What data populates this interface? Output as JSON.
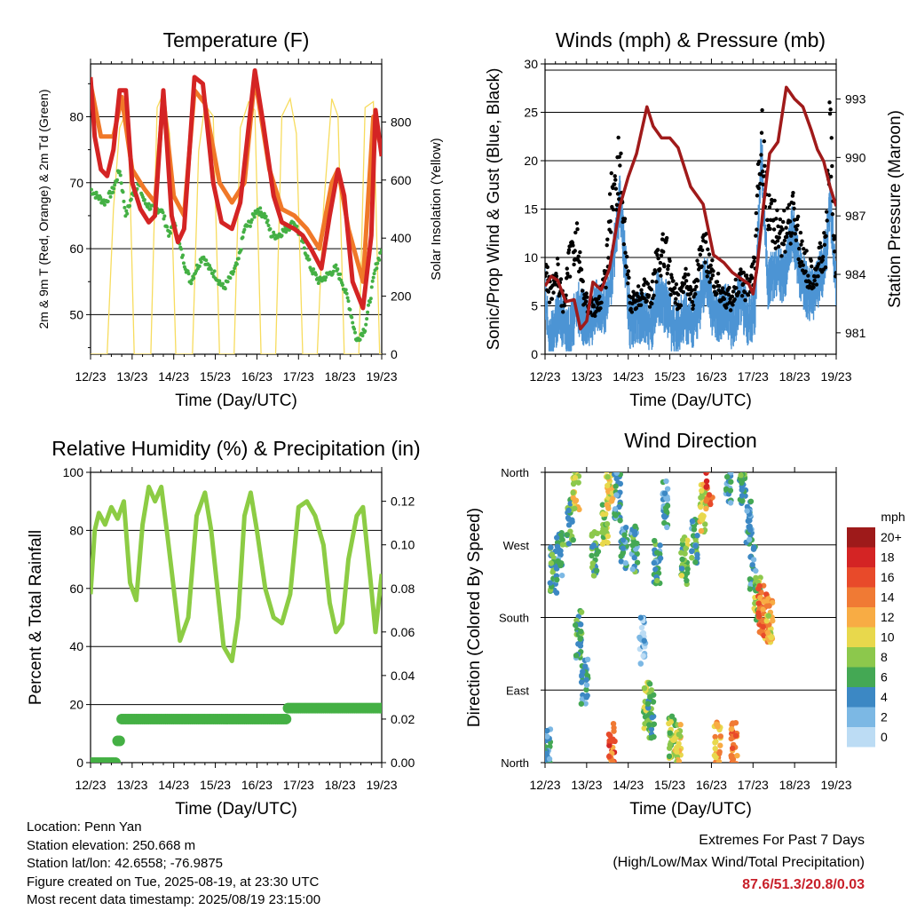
{
  "figure": {
    "footer": {
      "location": "Location: Penn Yan",
      "elevation": "Station elevation: 250.668 m",
      "latlon": "Station lat/lon: 42.6558; -76.9875",
      "created": "Figure created on Tue, 2025-08-19, at 23:30 UTC",
      "recent": "Most recent data timestamp: 2025/08/19 23:15:00"
    },
    "extremes": {
      "title": "Extremes For Past 7 Days",
      "subtitle": "(High/Low/Max Wind/Total Precipitation)",
      "values": "87.6/51.3/20.8/0.03"
    },
    "colors": {
      "temp_2m": "#d42424",
      "temp_9m": "#f07828",
      "dewpoint": "#44b044",
      "solar": "#f7dc5e",
      "wind": "#4c94d4",
      "gust": "#000000",
      "pressure": "#a01a1a",
      "rh": "#8ccc44",
      "precip": "#44b044"
    }
  },
  "chart_data": [
    {
      "type": "line",
      "title": "Temperature (F)",
      "xlabel": "Time (Day/UTC)",
      "ylabel": "2m & 9m T (Red, Orange) & 2m Td (Green)",
      "ylabel_right": "Solar Insolation (Yellow)",
      "xticks": [
        "12/23",
        "13/23",
        "14/23",
        "15/23",
        "16/23",
        "17/23",
        "18/23",
        "19/23"
      ],
      "yticks": [
        "50",
        "60",
        "70",
        "80"
      ],
      "yticks_right": [
        "0",
        "200",
        "400",
        "600",
        "800"
      ],
      "ylim": [
        44,
        88
      ],
      "ylim_right": [
        0,
        1000
      ],
      "xlim": [
        0,
        7
      ],
      "series": [
        {
          "name": "2m T",
          "x": [
            0,
            0.1,
            0.25,
            0.4,
            0.55,
            0.7,
            0.85,
            1.0,
            1.2,
            1.4,
            1.55,
            1.75,
            1.95,
            2.1,
            2.25,
            2.5,
            2.7,
            2.95,
            3.15,
            3.4,
            3.6,
            3.95,
            4.15,
            4.4,
            4.6,
            4.9,
            5.1,
            5.3,
            5.55,
            5.75,
            5.95,
            6.1,
            6.3,
            6.55,
            6.75,
            6.85,
            7.0
          ],
          "values": [
            86,
            77,
            72,
            71,
            75,
            84,
            84,
            70,
            66,
            64,
            65,
            84,
            65,
            61,
            63,
            86,
            85,
            70,
            64,
            63,
            67,
            87,
            79,
            68,
            64,
            63,
            62,
            60,
            57,
            65,
            72,
            68,
            55,
            51,
            62,
            81,
            74
          ]
        },
        {
          "name": "9m T",
          "x": [
            0,
            0.25,
            0.55,
            0.75,
            1.0,
            1.3,
            1.55,
            1.75,
            2.0,
            2.25,
            2.5,
            2.75,
            3.1,
            3.4,
            3.7,
            3.95,
            4.3,
            4.6,
            4.9,
            5.2,
            5.5,
            5.8,
            5.95,
            6.2,
            6.55,
            6.8,
            7.0
          ],
          "values": [
            85,
            77,
            77,
            83,
            72,
            69,
            67,
            83,
            68,
            65,
            84,
            82,
            70,
            67,
            70,
            86,
            72,
            66,
            65,
            63,
            60,
            70,
            72,
            63,
            55,
            80,
            75
          ]
        },
        {
          "name": "2m Td",
          "x": [
            0,
            0.15,
            0.35,
            0.55,
            0.7,
            0.85,
            1.0,
            1.15,
            1.3,
            1.5,
            1.7,
            1.9,
            2.0,
            2.2,
            2.4,
            2.55,
            2.7,
            2.85,
            3.0,
            3.2,
            3.4,
            3.55,
            3.7,
            3.85,
            4.0,
            4.2,
            4.35,
            4.5,
            4.7,
            4.9,
            5.1,
            5.3,
            5.5,
            5.7,
            5.9,
            6.05,
            6.2,
            6.4,
            6.6,
            6.85,
            7.0
          ],
          "values": [
            69,
            68,
            67,
            69,
            72,
            65,
            68,
            70,
            67,
            66,
            66,
            62,
            64,
            59,
            55,
            57,
            59,
            57,
            56,
            54,
            56,
            58,
            63,
            64,
            66,
            65,
            62,
            62,
            63,
            64,
            61,
            57,
            55,
            56,
            57,
            55,
            52,
            46,
            48,
            57,
            60
          ]
        },
        {
          "name": "Solar",
          "x": [
            0,
            0.4,
            0.55,
            0.7,
            0.9,
            1.05,
            1.2,
            1.45,
            1.6,
            1.75,
            1.9,
            2.05,
            2.2,
            2.45,
            2.6,
            2.75,
            2.95,
            3.1,
            3.25,
            3.45,
            3.6,
            3.8,
            3.95,
            4.1,
            4.25,
            4.45,
            4.6,
            4.8,
            4.95,
            5.1,
            5.25,
            5.45,
            5.6,
            5.8,
            5.95,
            6.1,
            6.25,
            6.45,
            6.6,
            6.8,
            6.95,
            7.0
          ],
          "values": [
            0,
            0,
            500,
            780,
            850,
            0,
            0,
            0,
            850,
            900,
            760,
            0,
            0,
            0,
            700,
            860,
            820,
            0,
            0,
            0,
            780,
            870,
            840,
            0,
            0,
            0,
            820,
            880,
            760,
            0,
            0,
            0,
            500,
            880,
            820,
            0,
            0,
            0,
            850,
            870,
            0,
            0
          ]
        }
      ]
    },
    {
      "type": "line",
      "title": "Winds (mph) & Pressure (mb)",
      "xlabel": "Time (Day/UTC)",
      "ylabel": "Sonic/Prop Wind & Gust (Blue, Black)",
      "ylabel_right": "Station Pressure (Maroon)",
      "xticks": [
        "12/23",
        "13/23",
        "14/23",
        "15/23",
        "16/23",
        "17/23",
        "18/23",
        "19/23"
      ],
      "yticks": [
        "0",
        "5",
        "10",
        "15",
        "20",
        "25",
        "30"
      ],
      "yticks_right": [
        "981",
        "984",
        "987",
        "990",
        "993"
      ],
      "ylim": [
        0,
        30
      ],
      "ylim_right": [
        979.9,
        994.8
      ],
      "xlim": [
        0,
        7
      ],
      "series": [
        {
          "name": "Wind",
          "x": [
            0,
            0.1,
            0.3,
            0.45,
            0.6,
            0.75,
            0.9,
            1.05,
            1.25,
            1.45,
            1.6,
            1.8,
            1.95,
            2.05,
            2.2,
            2.4,
            2.55,
            2.7,
            2.9,
            3.05,
            3.2,
            3.4,
            3.55,
            3.7,
            3.85,
            4.0,
            4.2,
            4.35,
            4.5,
            4.7,
            4.9,
            5.05,
            5.2,
            5.35,
            5.55,
            5.75,
            5.95,
            6.15,
            6.35,
            6.55,
            6.75,
            6.85,
            7.0
          ],
          "values": [
            6,
            1,
            4,
            3,
            2,
            5,
            4,
            3,
            5,
            5,
            8,
            16,
            8,
            3,
            4,
            4,
            3,
            6,
            5,
            3,
            3,
            4,
            3,
            5,
            8,
            5,
            4,
            5,
            3,
            6,
            3,
            5,
            21,
            7,
            9,
            8,
            13,
            8,
            6,
            7,
            10,
            16,
            6
          ]
        },
        {
          "name": "Gust",
          "x": [
            0,
            0.1,
            0.3,
            0.45,
            0.6,
            0.75,
            0.9,
            1.05,
            1.25,
            1.45,
            1.6,
            1.8,
            1.95,
            2.05,
            2.2,
            2.4,
            2.55,
            2.7,
            2.9,
            3.05,
            3.2,
            3.4,
            3.55,
            3.7,
            3.85,
            4.0,
            4.2,
            4.35,
            4.5,
            4.7,
            4.9,
            5.05,
            5.2,
            5.35,
            5.55,
            5.75,
            5.95,
            6.15,
            6.35,
            6.55,
            6.75,
            6.85,
            7.0
          ],
          "values": [
            12,
            8,
            10,
            6,
            12,
            15,
            8,
            6,
            6,
            9,
            20,
            24,
            12,
            6,
            7,
            8,
            7,
            12,
            13,
            8,
            7,
            9,
            7,
            11,
            13,
            10,
            8,
            7,
            7,
            9,
            8,
            12,
            28,
            18,
            16,
            15,
            18,
            13,
            10,
            11,
            13,
            28,
            9
          ]
        },
        {
          "name": "Pressure",
          "x": [
            0,
            0.15,
            0.3,
            0.5,
            0.7,
            0.85,
            1.0,
            1.15,
            1.35,
            1.55,
            1.8,
            2.0,
            2.2,
            2.45,
            2.6,
            2.8,
            3.0,
            3.2,
            3.5,
            3.8,
            4.05,
            4.3,
            4.5,
            4.7,
            4.9,
            5.0,
            5.1,
            5.25,
            5.4,
            5.6,
            5.8,
            6.0,
            6.2,
            6.4,
            6.55,
            6.7,
            6.85,
            7.0
          ],
          "values": [
            983.4,
            983.9,
            983.7,
            982.6,
            982.7,
            981.2,
            981.6,
            983.6,
            983.2,
            984.3,
            987.5,
            989.0,
            990.2,
            992.6,
            991.6,
            991.0,
            991.0,
            990.5,
            988.5,
            987.6,
            985.0,
            984.6,
            984.1,
            983.8,
            983.5,
            983.0,
            984.4,
            987.5,
            990.2,
            990.8,
            993.6,
            993.0,
            992.6,
            991.4,
            990.4,
            989.8,
            988.5,
            987.5
          ]
        }
      ]
    },
    {
      "type": "line",
      "title": "Relative Humidity (%) & Precipitation (in)",
      "xlabel": "Time (Day/UTC)",
      "ylabel": "Percent & Total Rainfall",
      "xticks": [
        "12/23",
        "13/23",
        "14/23",
        "15/23",
        "16/23",
        "17/23",
        "18/23",
        "19/23"
      ],
      "yticks": [
        "0",
        "20",
        "40",
        "60",
        "80",
        "100"
      ],
      "yticks_right": [
        "0.00",
        "0.02",
        "0.04",
        "0.06",
        "0.08",
        "0.10",
        "0.12"
      ],
      "ylim": [
        0,
        100
      ],
      "ylim_right": [
        0,
        0.1333
      ],
      "xlim": [
        0,
        7
      ],
      "series": [
        {
          "name": "RH",
          "x": [
            0,
            0.1,
            0.2,
            0.35,
            0.5,
            0.65,
            0.8,
            0.95,
            1.1,
            1.25,
            1.4,
            1.55,
            1.7,
            1.85,
            2.0,
            2.15,
            2.35,
            2.55,
            2.75,
            2.9,
            3.05,
            3.2,
            3.4,
            3.55,
            3.7,
            3.85,
            4.0,
            4.2,
            4.4,
            4.6,
            4.8,
            5.0,
            5.2,
            5.4,
            5.6,
            5.75,
            5.9,
            6.05,
            6.2,
            6.4,
            6.55,
            6.75,
            6.85,
            7.0
          ],
          "values": [
            58,
            80,
            86,
            82,
            88,
            84,
            90,
            62,
            56,
            82,
            95,
            90,
            95,
            78,
            60,
            42,
            50,
            85,
            93,
            80,
            60,
            40,
            35,
            50,
            85,
            93,
            80,
            60,
            50,
            48,
            58,
            88,
            90,
            85,
            75,
            55,
            45,
            48,
            70,
            85,
            88,
            60,
            45,
            65
          ]
        },
        {
          "name": "Precipitation",
          "x": [
            0,
            0.6,
            0.62,
            0.7,
            0.75,
            0.8,
            3.0,
            4.7,
            4.75,
            5.0,
            6.0,
            7.0
          ],
          "values": [
            0,
            0,
            0.01,
            0.01,
            0.02,
            0.02,
            0.02,
            0.02,
            0.025,
            0.025,
            0.025,
            0.025
          ]
        }
      ]
    },
    {
      "type": "scatter",
      "title": "Wind Direction",
      "xlabel": "Time (Day/UTC)",
      "ylabel": "Direction (Colored By Speed)",
      "xticks": [
        "12/23",
        "13/23",
        "14/23",
        "15/23",
        "16/23",
        "17/23",
        "18/23",
        "19/23"
      ],
      "yticks": [
        "North",
        "East",
        "South",
        "West",
        "North"
      ],
      "ylim": [
        0,
        360
      ],
      "xlim": [
        0,
        7
      ],
      "colorbar": {
        "title": "mph",
        "labels": [
          "20+",
          "18",
          "16",
          "14",
          "12",
          "10",
          "8",
          "6",
          "4",
          "2",
          "0"
        ],
        "colors": [
          "#9e1a1a",
          "#d42424",
          "#e84a2a",
          "#f07a34",
          "#f8ac44",
          "#e8d84c",
          "#8cc84c",
          "#44a854",
          "#3c88c4",
          "#7cb8e4",
          "#bcdcf4"
        ]
      },
      "clusters": [
        {
          "x": 0.05,
          "dir": 15,
          "speed": 4
        },
        {
          "x": 0.2,
          "dir": 240,
          "speed": 6
        },
        {
          "x": 0.35,
          "dir": 255,
          "speed": 5
        },
        {
          "x": 0.6,
          "dir": 300,
          "speed": 6
        },
        {
          "x": 0.75,
          "dir": 340,
          "speed": 10
        },
        {
          "x": 0.8,
          "dir": 160,
          "speed": 5
        },
        {
          "x": 0.95,
          "dir": 100,
          "speed": 4
        },
        {
          "x": 1.2,
          "dir": 260,
          "speed": 6
        },
        {
          "x": 1.45,
          "dir": 300,
          "speed": 8
        },
        {
          "x": 1.55,
          "dir": 345,
          "speed": 10
        },
        {
          "x": 1.6,
          "dir": 20,
          "speed": 15
        },
        {
          "x": 1.75,
          "dir": 330,
          "speed": 5
        },
        {
          "x": 1.9,
          "dir": 270,
          "speed": 4
        },
        {
          "x": 2.15,
          "dir": 265,
          "speed": 5
        },
        {
          "x": 2.35,
          "dir": 150,
          "speed": 2
        },
        {
          "x": 2.45,
          "dir": 70,
          "speed": 8
        },
        {
          "x": 2.55,
          "dir": 60,
          "speed": 6
        },
        {
          "x": 2.7,
          "dir": 250,
          "speed": 5
        },
        {
          "x": 2.9,
          "dir": 320,
          "speed": 4
        },
        {
          "x": 3.05,
          "dir": 30,
          "speed": 8
        },
        {
          "x": 3.2,
          "dir": 20,
          "speed": 10
        },
        {
          "x": 3.35,
          "dir": 250,
          "speed": 7
        },
        {
          "x": 3.6,
          "dir": 275,
          "speed": 5
        },
        {
          "x": 3.8,
          "dir": 315,
          "speed": 10
        },
        {
          "x": 3.95,
          "dir": 350,
          "speed": 16
        },
        {
          "x": 4.15,
          "dir": 20,
          "speed": 12
        },
        {
          "x": 4.4,
          "dir": 350,
          "speed": 4
        },
        {
          "x": 4.55,
          "dir": 20,
          "speed": 14
        },
        {
          "x": 4.75,
          "dir": 350,
          "speed": 6
        },
        {
          "x": 4.9,
          "dir": 300,
          "speed": 4
        },
        {
          "x": 5.0,
          "dir": 240,
          "speed": 5
        },
        {
          "x": 5.1,
          "dir": 200,
          "speed": 8
        },
        {
          "x": 5.2,
          "dir": 190,
          "speed": 14
        },
        {
          "x": 5.3,
          "dir": 180,
          "speed": 13
        },
        {
          "x": 5.4,
          "dir": 175,
          "speed": 11
        }
      ]
    }
  ]
}
